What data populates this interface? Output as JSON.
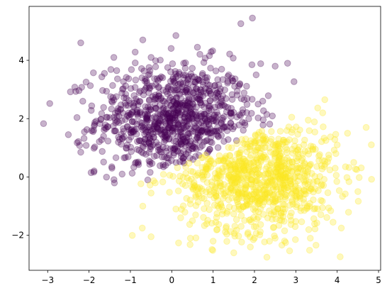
{
  "chart_data": {
    "type": "scatter",
    "title": "",
    "xlabel": "",
    "ylabel": "",
    "xlim": [
      -3.45,
      5.05
    ],
    "ylim": [
      -3.2,
      5.85
    ],
    "x_ticks": [
      -3,
      -2,
      -1,
      0,
      1,
      2,
      3,
      4,
      5
    ],
    "y_ticks": [
      -2,
      0,
      2,
      4
    ],
    "grid": false,
    "legend": "none",
    "point_alpha": 0.3,
    "series": [
      {
        "color": "#440154",
        "center": [
          0.1,
          2.0
        ],
        "spread": 0.95,
        "count": 900,
        "decision_boundary": "y > 0.62 * x + 0.25",
        "points": [
          [
            -3.1,
            1.83
          ],
          [
            -2.95,
            2.52
          ],
          [
            -2.2,
            4.6
          ],
          [
            0.1,
            4.85
          ],
          [
            0.62,
            4.45
          ],
          [
            1.95,
            5.45
          ],
          [
            2.5,
            3.8
          ],
          [
            2.8,
            3.9
          ],
          [
            -2.45,
            2.92
          ],
          [
            -2.5,
            1.45
          ],
          [
            -2.2,
            0.85
          ],
          [
            -1.95,
            0.15
          ],
          [
            -1.2,
            0.1
          ],
          [
            -1.4,
            4.1
          ],
          [
            -0.5,
            4.1
          ],
          [
            -0.7,
            4.7
          ],
          [
            -1.1,
            1.0
          ],
          [
            -1.45,
            0.35
          ],
          [
            -0.55,
            0.55
          ],
          [
            -0.2,
            0.35
          ]
        ]
      },
      {
        "color": "#fde725",
        "center": [
          2.1,
          0.0
        ],
        "spread": 0.95,
        "count": 900,
        "decision_boundary": "y < 0.62 * x + 0.25",
        "points": [
          [
            4.7,
            1.7
          ],
          [
            3.7,
            2.65
          ],
          [
            3.65,
            2.2
          ],
          [
            3.3,
            1.95
          ],
          [
            2.9,
            2.05
          ],
          [
            -0.7,
            -1.0
          ],
          [
            -0.5,
            -2.05
          ],
          [
            -0.5,
            -0.55
          ],
          [
            0.1,
            -1.1
          ],
          [
            0.45,
            -2.1
          ],
          [
            0.5,
            -1.5
          ],
          [
            1.0,
            -2.2
          ],
          [
            1.1,
            -1.8
          ],
          [
            1.5,
            -2.6
          ],
          [
            1.9,
            -2.4
          ],
          [
            2.3,
            -2.75
          ],
          [
            2.5,
            -2.1
          ],
          [
            3.35,
            -2.1
          ],
          [
            3.9,
            -1.55
          ],
          [
            4.1,
            -1.75
          ],
          [
            4.2,
            0.35
          ],
          [
            4.4,
            0.5
          ],
          [
            4.5,
            -0.5
          ],
          [
            4.0,
            1.1
          ],
          [
            4.25,
            1.5
          ]
        ]
      }
    ]
  }
}
